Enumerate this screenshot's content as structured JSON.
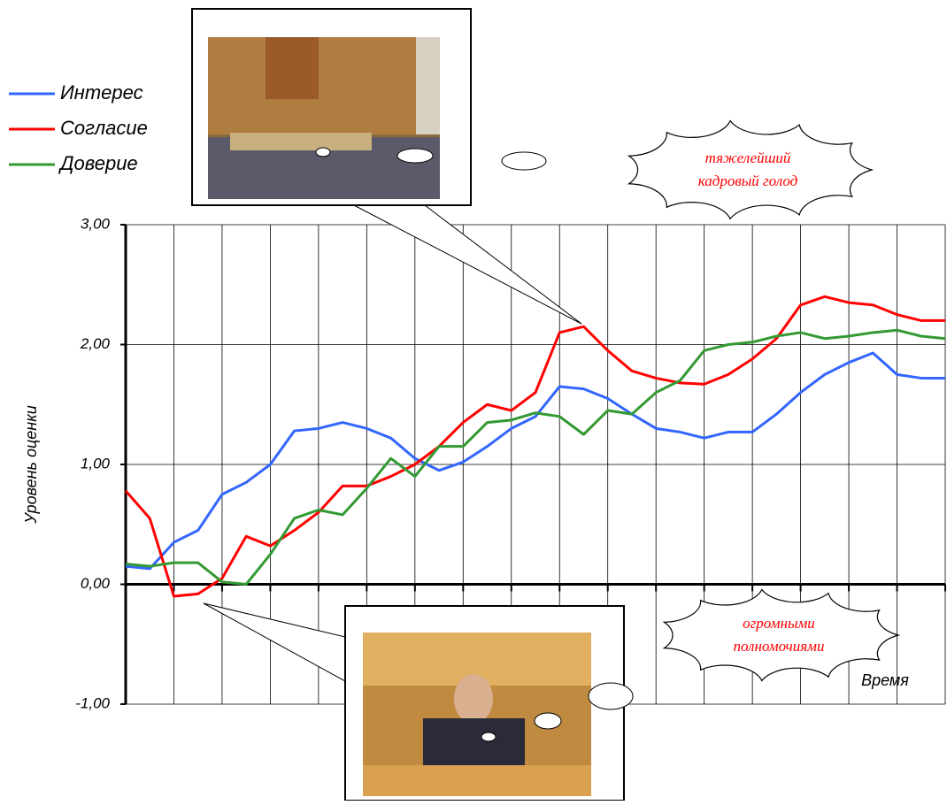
{
  "chart_data": {
    "type": "line",
    "y_label": "Уровень оценки",
    "x_label": "Время",
    "ylim": [
      -1,
      3
    ],
    "yticks": [
      {
        "value": -1,
        "label": "-1,00"
      },
      {
        "value": 0,
        "label": "0,00"
      },
      {
        "value": 1,
        "label": "1,00"
      },
      {
        "value": 2,
        "label": "2,00"
      },
      {
        "value": 3,
        "label": "3,00"
      }
    ],
    "grid": true,
    "legend": "top-left",
    "series": [
      {
        "name": "Интерес",
        "color": "#3366ff",
        "values": [
          0.15,
          0.13,
          0.35,
          0.45,
          0.75,
          0.85,
          1.0,
          1.28,
          1.3,
          1.35,
          1.3,
          1.22,
          1.05,
          0.95,
          1.02,
          1.15,
          1.3,
          1.4,
          1.65,
          1.63,
          1.55,
          1.42,
          1.3,
          1.27,
          1.22,
          1.27,
          1.27,
          1.42,
          1.6,
          1.75,
          1.85,
          1.93,
          1.75,
          1.72,
          1.72
        ]
      },
      {
        "name": "Согласие",
        "color": "#ff0000",
        "values": [
          0.78,
          0.55,
          -0.1,
          -0.08,
          0.05,
          0.4,
          0.32,
          0.45,
          0.6,
          0.82,
          0.82,
          0.9,
          1.0,
          1.15,
          1.35,
          1.5,
          1.45,
          1.6,
          2.1,
          2.15,
          1.95,
          1.78,
          1.72,
          1.68,
          1.67,
          1.75,
          1.88,
          2.05,
          2.33,
          2.4,
          2.35,
          2.33,
          2.25,
          2.2,
          2.2
        ]
      },
      {
        "name": "Доверие",
        "color": "#339933",
        "values": [
          0.17,
          0.15,
          0.18,
          0.18,
          0.02,
          0.0,
          0.25,
          0.55,
          0.62,
          0.58,
          0.8,
          1.05,
          0.9,
          1.15,
          1.15,
          1.35,
          1.37,
          1.43,
          1.4,
          1.25,
          1.45,
          1.42,
          1.6,
          1.7,
          1.95,
          2.0,
          2.02,
          2.07,
          2.1,
          2.05,
          2.07,
          2.1,
          2.12,
          2.07,
          2.05
        ]
      }
    ],
    "annotations": [
      {
        "lines": [
          "тяжелейший",
          "кадровый голод"
        ],
        "color": "#ff0000"
      },
      {
        "lines": [
          "огромными",
          "полномочиями"
        ],
        "color": "#ff0000"
      }
    ]
  }
}
